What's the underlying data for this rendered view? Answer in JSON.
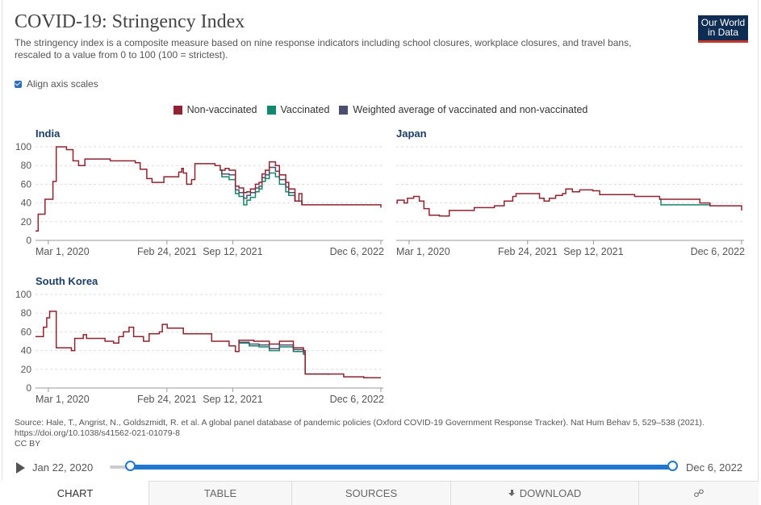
{
  "header": {
    "title": "COVID-19: Stringency Index",
    "subtitle": "The stringency index is a composite measure based on nine response indicators including school closures, workplace closures, and travel bans, rescaled to a value from 0 to 100 (100 = strictest).",
    "logo_line1": "Our World",
    "logo_line2": "in Data"
  },
  "controls": {
    "align_label": "Align axis scales",
    "align_checked": true
  },
  "legend": [
    {
      "label": "Non-vaccinated",
      "color": "#8f2331"
    },
    {
      "label": "Vaccinated",
      "color": "#15876a"
    },
    {
      "label": "Weighted average of vaccinated and non-vaccinated",
      "color": "#4b4f6d"
    }
  ],
  "chart_data": [
    {
      "type": "line",
      "title": "India",
      "ylim": [
        0,
        100
      ],
      "yticks": [
        0,
        20,
        40,
        60,
        80,
        100
      ],
      "xticks": [
        "Mar 1, 2020",
        "Feb 24, 2021",
        "Sep 12, 2021",
        "Dec 6, 2022"
      ],
      "xlim": [
        "2020-01-22",
        "2022-12-06"
      ],
      "series": [
        {
          "name": "Non-vaccinated",
          "color": "#8f2331",
          "points": [
            [
              "2020-01-22",
              10
            ],
            [
              "2020-01-30",
              28
            ],
            [
              "2020-02-10",
              28
            ],
            [
              "2020-02-20",
              44
            ],
            [
              "2020-03-10",
              44
            ],
            [
              "2020-03-15",
              63
            ],
            [
              "2020-03-25",
              100
            ],
            [
              "2020-04-25",
              97
            ],
            [
              "2020-05-15",
              85
            ],
            [
              "2020-06-01",
              80
            ],
            [
              "2020-06-20",
              87
            ],
            [
              "2020-09-01",
              87
            ],
            [
              "2020-09-05",
              85
            ],
            [
              "2020-11-20",
              83
            ],
            [
              "2020-12-05",
              76
            ],
            [
              "2020-12-25",
              66
            ],
            [
              "2021-01-10",
              62
            ],
            [
              "2021-02-15",
              68
            ],
            [
              "2021-03-25",
              68
            ],
            [
              "2021-04-01",
              73
            ],
            [
              "2021-04-10",
              77
            ],
            [
              "2021-04-15",
              72
            ],
            [
              "2021-04-25",
              60
            ],
            [
              "2021-05-10",
              65
            ],
            [
              "2021-05-20",
              82
            ],
            [
              "2021-07-20",
              80
            ],
            [
              "2021-08-05",
              75
            ],
            [
              "2021-08-20",
              77
            ],
            [
              "2021-09-01",
              75
            ],
            [
              "2021-09-20",
              58
            ],
            [
              "2021-10-01",
              56
            ],
            [
              "2021-10-15",
              51
            ],
            [
              "2021-10-25",
              52
            ],
            [
              "2021-11-05",
              55
            ],
            [
              "2021-11-20",
              60
            ],
            [
              "2021-12-01",
              62
            ],
            [
              "2021-12-10",
              71
            ],
            [
              "2021-12-20",
              75
            ],
            [
              "2022-01-01",
              84
            ],
            [
              "2022-01-20",
              80
            ],
            [
              "2022-02-01",
              70
            ],
            [
              "2022-02-20",
              62
            ],
            [
              "2022-03-01",
              55
            ],
            [
              "2022-03-20",
              42
            ],
            [
              "2022-04-01",
              50
            ],
            [
              "2022-04-10",
              38
            ],
            [
              "2022-12-05",
              38
            ],
            [
              "2022-12-06",
              35
            ]
          ]
        },
        {
          "name": "Vaccinated",
          "color": "#15876a",
          "points": [
            [
              "2021-08-05",
              75
            ],
            [
              "2021-08-10",
              68
            ],
            [
              "2021-09-01",
              65
            ],
            [
              "2021-09-20",
              50
            ],
            [
              "2021-10-01",
              47
            ],
            [
              "2021-10-15",
              38
            ],
            [
              "2021-10-25",
              43
            ],
            [
              "2021-11-05",
              46
            ],
            [
              "2021-11-20",
              52
            ],
            [
              "2021-12-01",
              55
            ],
            [
              "2021-12-10",
              63
            ],
            [
              "2021-12-20",
              66
            ],
            [
              "2022-01-01",
              72
            ],
            [
              "2022-01-20",
              68
            ],
            [
              "2022-02-01",
              60
            ],
            [
              "2022-02-20",
              52
            ],
            [
              "2022-03-01",
              48
            ],
            [
              "2022-03-20",
              42
            ],
            [
              "2022-04-10",
              38
            ]
          ]
        },
        {
          "name": "Weighted average of vaccinated and non-vaccinated",
          "color": "#4b4f6d",
          "points": [
            [
              "2021-08-05",
              75
            ],
            [
              "2021-08-10",
              71
            ],
            [
              "2021-09-01",
              70
            ],
            [
              "2021-09-20",
              54
            ],
            [
              "2021-10-01",
              51
            ],
            [
              "2021-10-15",
              45
            ],
            [
              "2021-10-25",
              48
            ],
            [
              "2021-11-05",
              51
            ],
            [
              "2021-11-20",
              56
            ],
            [
              "2021-12-01",
              58
            ],
            [
              "2021-12-10",
              67
            ],
            [
              "2021-12-20",
              70
            ],
            [
              "2022-01-01",
              78
            ],
            [
              "2022-01-20",
              74
            ],
            [
              "2022-02-01",
              65
            ],
            [
              "2022-02-20",
              57
            ],
            [
              "2022-03-01",
              51
            ],
            [
              "2022-03-20",
              42
            ],
            [
              "2022-04-10",
              38
            ]
          ]
        }
      ]
    },
    {
      "type": "line",
      "title": "Japan",
      "ylim": [
        0,
        100
      ],
      "yticks": [
        0,
        20,
        40,
        60,
        80,
        100
      ],
      "xticks": [
        "Mar 1, 2020",
        "Feb 24, 2021",
        "Sep 12, 2021",
        "Dec 6, 2022"
      ],
      "xlim": [
        "2020-01-22",
        "2022-12-06"
      ],
      "series": [
        {
          "name": "Non-vaccinated",
          "color": "#8f2331",
          "points": [
            [
              "2020-01-22",
              40
            ],
            [
              "2020-01-25",
              43
            ],
            [
              "2020-02-15",
              40
            ],
            [
              "2020-02-25",
              45
            ],
            [
              "2020-03-15",
              47
            ],
            [
              "2020-04-01",
              42
            ],
            [
              "2020-04-15",
              34
            ],
            [
              "2020-05-01",
              27
            ],
            [
              "2020-06-01",
              26
            ],
            [
              "2020-07-01",
              32
            ],
            [
              "2020-08-15",
              32
            ],
            [
              "2020-09-15",
              35
            ],
            [
              "2020-11-15",
              37
            ],
            [
              "2020-12-15",
              42
            ],
            [
              "2021-01-10",
              47
            ],
            [
              "2021-01-20",
              50
            ],
            [
              "2021-03-15",
              50
            ],
            [
              "2021-04-01",
              45
            ],
            [
              "2021-04-15",
              42
            ],
            [
              "2021-05-01",
              45
            ],
            [
              "2021-05-20",
              48
            ],
            [
              "2021-06-10",
              50
            ],
            [
              "2021-06-20",
              55
            ],
            [
              "2021-07-10",
              52
            ],
            [
              "2021-08-01",
              54
            ],
            [
              "2021-09-10",
              53
            ],
            [
              "2021-10-01",
              49
            ],
            [
              "2022-01-15",
              47
            ],
            [
              "2022-03-01",
              47
            ],
            [
              "2022-04-01",
              44
            ],
            [
              "2022-08-01",
              40
            ],
            [
              "2022-09-01",
              37
            ],
            [
              "2022-12-06",
              32
            ]
          ]
        },
        {
          "name": "Vaccinated",
          "color": "#15876a",
          "points": [
            [
              "2022-04-01",
              44
            ],
            [
              "2022-04-05",
              38
            ],
            [
              "2022-09-01",
              37
            ]
          ]
        }
      ]
    },
    {
      "type": "line",
      "title": "South Korea",
      "ylim": [
        0,
        100
      ],
      "yticks": [
        0,
        20,
        40,
        60,
        80,
        100
      ],
      "xticks": [
        "Mar 1, 2020",
        "Feb 24, 2021",
        "Sep 12, 2021",
        "Dec 6, 2022"
      ],
      "xlim": [
        "2020-01-22",
        "2022-12-06"
      ],
      "series": [
        {
          "name": "Non-vaccinated",
          "color": "#8f2331",
          "points": [
            [
              "2020-01-22",
              55
            ],
            [
              "2020-02-05",
              55
            ],
            [
              "2020-02-15",
              65
            ],
            [
              "2020-02-25",
              75
            ],
            [
              "2020-03-05",
              82
            ],
            [
              "2020-03-20",
              82
            ],
            [
              "2020-03-25",
              43
            ],
            [
              "2020-04-25",
              43
            ],
            [
              "2020-05-10",
              40
            ],
            [
              "2020-05-20",
              53
            ],
            [
              "2020-06-10",
              53
            ],
            [
              "2020-06-15",
              57
            ],
            [
              "2020-06-25",
              53
            ],
            [
              "2020-08-15",
              53
            ],
            [
              "2020-08-20",
              50
            ],
            [
              "2020-09-15",
              48
            ],
            [
              "2020-10-01",
              55
            ],
            [
              "2020-10-15",
              60
            ],
            [
              "2020-11-01",
              65
            ],
            [
              "2020-11-15",
              55
            ],
            [
              "2020-12-15",
              50
            ],
            [
              "2021-01-01",
              58
            ],
            [
              "2021-01-20",
              58
            ],
            [
              "2021-02-01",
              60
            ],
            [
              "2021-02-10",
              68
            ],
            [
              "2021-02-25",
              64
            ],
            [
              "2021-03-15",
              64
            ],
            [
              "2021-04-15",
              58
            ],
            [
              "2021-06-01",
              58
            ],
            [
              "2021-07-10",
              50
            ],
            [
              "2021-08-15",
              50
            ],
            [
              "2021-09-01",
              45
            ],
            [
              "2021-09-20",
              39
            ],
            [
              "2021-10-01",
              51
            ],
            [
              "2021-11-01",
              51
            ],
            [
              "2021-11-15",
              50
            ],
            [
              "2022-01-01",
              47
            ],
            [
              "2022-02-01",
              50
            ],
            [
              "2022-03-15",
              43
            ],
            [
              "2022-04-15",
              40
            ],
            [
              "2022-04-20",
              15
            ],
            [
              "2022-06-01",
              15
            ],
            [
              "2022-07-01",
              15
            ],
            [
              "2022-08-15",
              12
            ],
            [
              "2022-10-01",
              12
            ],
            [
              "2022-10-15",
              11
            ],
            [
              "2022-12-06",
              11
            ]
          ]
        },
        {
          "name": "Vaccinated",
          "color": "#15876a",
          "points": [
            [
              "2021-10-01",
              48
            ],
            [
              "2021-11-01",
              45
            ],
            [
              "2021-12-01",
              44
            ],
            [
              "2022-01-01",
              40
            ],
            [
              "2022-02-01",
              44
            ],
            [
              "2022-03-15",
              39
            ],
            [
              "2022-04-15",
              36
            ],
            [
              "2022-04-20",
              15
            ],
            [
              "2022-06-01",
              15
            ],
            [
              "2022-07-01",
              14
            ]
          ]
        },
        {
          "name": "Weighted average of vaccinated and non-vaccinated",
          "color": "#4b4f6d",
          "points": [
            [
              "2021-10-01",
              49
            ],
            [
              "2021-11-01",
              47
            ],
            [
              "2021-12-01",
              46
            ],
            [
              "2022-01-01",
              42
            ],
            [
              "2022-02-01",
              46
            ],
            [
              "2022-03-15",
              41
            ],
            [
              "2022-04-15",
              38
            ],
            [
              "2022-04-20",
              15
            ]
          ]
        }
      ]
    }
  ],
  "footer": {
    "source": "Source: Hale, T., Angrist, N., Goldszmidt, R. et al. A global panel database of pandemic policies (Oxford COVID-19 Government Response Tracker). Nat Hum Behav 5, 529–538 (2021). https://doi.org/10.1038/s41562-021-01079-8",
    "license": "CC BY"
  },
  "timeline": {
    "start": "Jan 22, 2020",
    "end": "Dec 6, 2022"
  },
  "tabs": {
    "chart": "CHART",
    "table": "TABLE",
    "sources": "SOURCES",
    "download": "DOWNLOAD"
  }
}
